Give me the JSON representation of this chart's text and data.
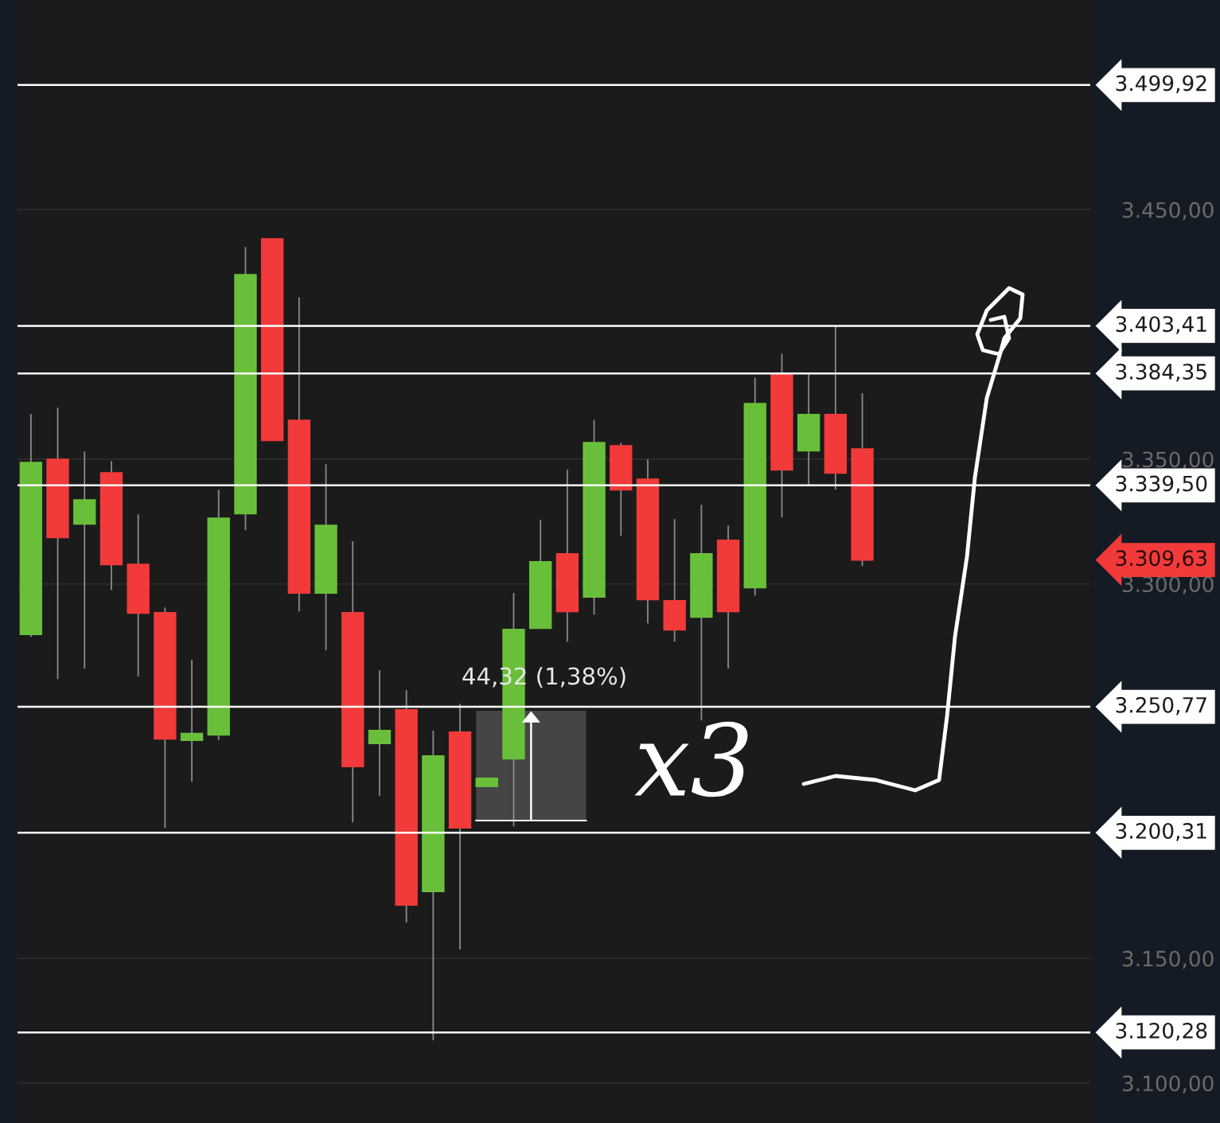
{
  "chart_data": {
    "type": "candlestick",
    "categories": [
      null,
      null,
      null,
      null,
      null,
      null,
      null,
      null,
      null,
      null,
      null,
      null,
      null,
      null,
      null,
      null,
      null,
      null,
      null,
      null,
      null,
      null,
      null,
      null,
      null,
      null,
      null,
      null,
      null,
      null,
      null,
      null,
      null,
      null,
      null,
      null,
      null,
      null,
      null,
      null
    ],
    "ohlc": [
      [
        3279.8,
        3368.1,
        3278.8,
        3348.6
      ],
      [
        3349.9,
        3370.6,
        3261.9,
        3318.7
      ],
      [
        3324.1,
        3353.1,
        3266.1,
        3333.6
      ],
      [
        3344.5,
        3349.3,
        3297.6,
        3307.8
      ],
      [
        3307.8,
        3327.9,
        3262.9,
        3288.4
      ],
      [
        3288.4,
        3290.6,
        3202.3,
        3238.0
      ],
      [
        3237.4,
        3269.6,
        3220.8,
        3240.0
      ],
      [
        3239.6,
        3337.8,
        3237.4,
        3326.3
      ],
      [
        3328.2,
        3435.0,
        3321.5,
        3423.9
      ],
      [
        3438.2,
        3438.2,
        3357.6,
        3357.6
      ],
      [
        3365.5,
        3414.9,
        3289.0,
        3296.4
      ],
      [
        3296.4,
        3348.0,
        3273.4,
        3323.4
      ],
      [
        3288.4,
        3317.1,
        3204.5,
        3226.9
      ],
      [
        3236.1,
        3265.4,
        3215.1,
        3241.2
      ],
      [
        3249.5,
        3257.5,
        3164.4,
        3171.4
      ],
      [
        3176.8,
        3241.2,
        3117.2,
        3231.0
      ],
      [
        3240.6,
        3252.0,
        3153.5,
        3202.3
      ],
      [
        3218.9,
        3222.1,
        3218.9,
        3222.1
      ],
      [
        3230.0,
        3296.4,
        3202.9,
        3281.7
      ],
      [
        3282.3,
        3325.7,
        3282.3,
        3308.8
      ],
      [
        3312.0,
        3345.8,
        3276.9,
        3289.0
      ],
      [
        3294.8,
        3365.8,
        3287.7,
        3356.6
      ],
      [
        3355.3,
        3356.6,
        3319.3,
        3337.8
      ],
      [
        3341.9,
        3349.9,
        3284.2,
        3293.8
      ],
      [
        3293.2,
        3326.0,
        3276.9,
        3281.7
      ],
      [
        3286.8,
        3331.7,
        3245.3,
        3312.0
      ],
      [
        3317.4,
        3323.4,
        3266.1,
        3289.0
      ],
      [
        3298.6,
        3382.7,
        3295.4,
        3372.2
      ],
      [
        3384.3,
        3392.3,
        3326.6,
        3345.8
      ],
      [
        3353.4,
        3384.3,
        3339.4,
        3367.8
      ],
      [
        3367.8,
        3403.5,
        3337.8,
        3344.5
      ],
      [
        3354.0,
        3376.4,
        3307.2,
        3309.63
      ],
      null,
      null,
      null,
      null,
      null,
      null,
      null,
      null
    ],
    "colors": [
      "#6abf3a",
      "#f23a3a",
      "#6abf3a",
      "#f23a3a",
      "#f23a3a",
      "#f23a3a",
      "#6abf3a",
      "#6abf3a",
      "#6abf3a",
      "#f23a3a",
      "#f23a3a",
      "#6abf3a",
      "#f23a3a",
      "#6abf3a",
      "#f23a3a",
      "#6abf3a",
      "#f23a3a",
      "#6abf3a",
      "#6abf3a",
      "#6abf3a",
      "#f23a3a",
      "#6abf3a",
      "#f23a3a",
      "#f23a3a",
      "#f23a3a",
      "#6abf3a",
      "#f23a3a",
      "#6abf3a",
      "#f23a3a",
      "#6abf3a",
      "#f23a3a",
      "#f23a3a",
      null,
      null,
      null,
      null,
      null,
      null,
      null,
      null
    ],
    "ylim": [
      3084,
      3534
    ],
    "yticks": [
      {
        "value": 3100,
        "label": "3.100,00"
      },
      {
        "value": 3150,
        "label": "3.150,00"
      },
      {
        "value": 3300,
        "label": "3.300,00"
      },
      {
        "value": 3350,
        "label": "3.350,00"
      },
      {
        "value": 3450,
        "label": "3.450,00"
      }
    ],
    "grid": "y",
    "ref_lines": [
      {
        "axis": "y",
        "value": 3499.92,
        "label": "3.499,92",
        "color": "#ffffff",
        "line_style": "solid"
      },
      {
        "axis": "y",
        "value": 3403.41,
        "label": "3.403,41",
        "color": "#ffffff",
        "line_style": "solid"
      },
      {
        "axis": "y",
        "value": 3384.35,
        "label": "3.384,35",
        "color": "#ffffff",
        "line_style": "solid"
      },
      {
        "axis": "y",
        "value": 3339.5,
        "label": "3.339,50",
        "color": "#ffffff",
        "line_style": "solid"
      },
      {
        "axis": "y",
        "value": 3250.77,
        "label": "3.250,77",
        "color": "#ffffff",
        "line_style": "solid"
      },
      {
        "axis": "y",
        "value": 3200.31,
        "label": "3.200,31",
        "color": "#ffffff",
        "line_style": "solid"
      },
      {
        "axis": "y",
        "value": 3120.28,
        "label": "3.120,28",
        "color": "#ffffff",
        "line_style": "solid"
      }
    ],
    "annotations": [
      "44,32 (1,38%)",
      "x3",
      "3.309,63"
    ]
  }
}
